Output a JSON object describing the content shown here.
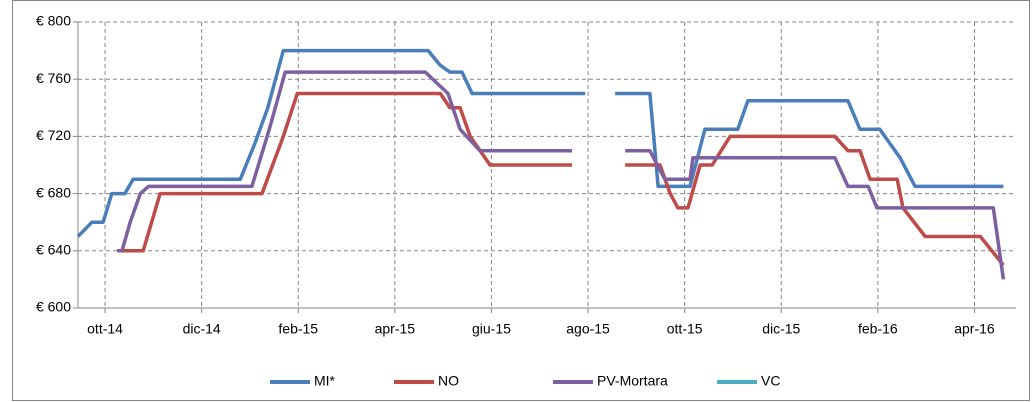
{
  "chart_data": {
    "type": "line",
    "xlim": [
      -0.56,
      18.86
    ],
    "xticks": [
      {
        "value": 0,
        "label": "ott-14"
      },
      {
        "value": 2,
        "label": "dic-14"
      },
      {
        "value": 4,
        "label": "feb-15"
      },
      {
        "value": 6,
        "label": "apr-15"
      },
      {
        "value": 8,
        "label": "giu-15"
      },
      {
        "value": 10,
        "label": "ago-15"
      },
      {
        "value": 12,
        "label": "ott-15"
      },
      {
        "value": 14,
        "label": "dic-15"
      },
      {
        "value": 16,
        "label": "feb-16"
      },
      {
        "value": 18,
        "label": "apr-16"
      }
    ],
    "ylim": [
      600,
      800
    ],
    "yticks": [
      {
        "value": 600,
        "label": "€ 600"
      },
      {
        "value": 640,
        "label": "€ 640"
      },
      {
        "value": 680,
        "label": "€ 680"
      },
      {
        "value": 720,
        "label": "€ 720"
      },
      {
        "value": 760,
        "label": "€ 760"
      },
      {
        "value": 800,
        "label": "€ 800"
      }
    ],
    "grid": true,
    "legend": "bottom",
    "series": [
      {
        "name": "MI*",
        "color": "#4a7ebb",
        "x": [
          -0.56,
          -0.27,
          -0.04,
          0.14,
          0.41,
          0.58,
          2.8,
          3.1,
          3.37,
          3.69,
          6.69,
          6.93,
          7.14,
          7.39,
          7.6,
          9.94,
          null,
          10.56,
          11.28,
          11.45,
          12.11,
          12.42,
          13.1,
          13.31,
          15.38,
          15.63,
          16.04,
          16.46,
          16.77,
          18.6
        ],
        "values": [
          650,
          660,
          660,
          680,
          680,
          690,
          690,
          715,
          740,
          780,
          780,
          770,
          765,
          765,
          750,
          750,
          null,
          750,
          750,
          685,
          685,
          725,
          725,
          745,
          745,
          725,
          725,
          705,
          685,
          685
        ]
      },
      {
        "name": "NO",
        "color": "#be4b48",
        "x": [
          0.25,
          0.79,
          1.14,
          3.25,
          3.69,
          3.98,
          6.94,
          7.14,
          7.35,
          7.56,
          7.97,
          9.67,
          null,
          10.77,
          11.49,
          11.7,
          11.86,
          12.07,
          12.32,
          12.57,
          12.94,
          15.11,
          15.38,
          15.63,
          15.84,
          16.4,
          16.52,
          16.98,
          18.12,
          18.6
        ],
        "values": [
          640,
          640,
          680,
          680,
          720,
          750,
          750,
          740,
          740,
          720,
          700,
          700,
          null,
          700,
          700,
          680,
          670,
          670,
          700,
          700,
          720,
          720,
          710,
          710,
          690,
          690,
          670,
          650,
          650,
          630
        ]
      },
      {
        "name": "PV-Mortara",
        "color": "#7d60a0",
        "x": [
          0.25,
          0.35,
          0.52,
          0.73,
          0.9,
          3.04,
          3.4,
          3.73,
          6.63,
          7.1,
          7.35,
          7.76,
          9.67,
          null,
          10.77,
          11.28,
          11.59,
          12.11,
          12.17,
          15.11,
          15.38,
          15.8,
          15.98,
          18.39,
          18.6
        ],
        "values": [
          640,
          640,
          660,
          680,
          685,
          685,
          725,
          765,
          765,
          750,
          725,
          710,
          710,
          null,
          710,
          710,
          690,
          690,
          705,
          705,
          685,
          685,
          670,
          670,
          620
        ]
      },
      {
        "name": "VC",
        "color": "#4bacc6",
        "x": [],
        "values": []
      }
    ]
  }
}
